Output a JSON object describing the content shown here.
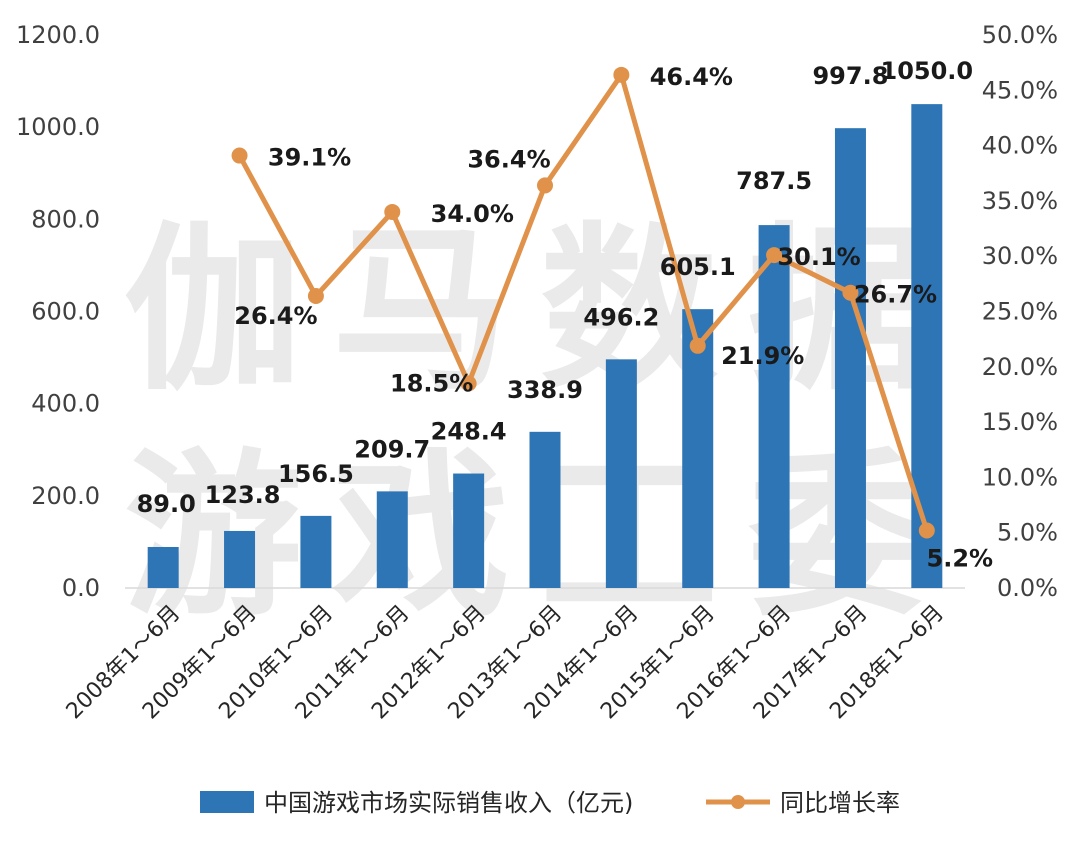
{
  "chart_data": {
    "type": "bar",
    "categories": [
      "2008年1～6月",
      "2009年1～6月",
      "2010年1～6月",
      "2011年1～6月",
      "2012年1～6月",
      "2013年1～6月",
      "2014年1～6月",
      "2015年1～6月",
      "2016年1～6月",
      "2017年1～6月",
      "2018年1～6月"
    ],
    "series": [
      {
        "name": "中国游戏市场实际销售收入（亿元)",
        "type": "bar",
        "axis": "left",
        "values": [
          89.0,
          123.8,
          156.5,
          209.7,
          248.4,
          338.9,
          496.2,
          605.1,
          787.5,
          997.8,
          1050.0
        ],
        "labels": [
          "89.0",
          "123.8",
          "156.5",
          "209.7",
          "248.4",
          "338.9",
          "496.2",
          "605.1",
          "787.5",
          "997.8",
          "1050.0"
        ]
      },
      {
        "name": "同比增长率",
        "type": "line",
        "axis": "right",
        "values": [
          null,
          39.1,
          26.4,
          34.0,
          18.5,
          36.4,
          46.4,
          21.9,
          30.1,
          26.7,
          5.2
        ],
        "labels": [
          null,
          "39.1%",
          "26.4%",
          "34.0%",
          "18.5%",
          "36.4%",
          "46.4%",
          "21.9%",
          "30.1%",
          "26.7%",
          "5.2%"
        ]
      }
    ],
    "left_axis": {
      "ylim": [
        0,
        1200
      ],
      "ticks": [
        "0.0",
        "200.0",
        "400.0",
        "600.0",
        "800.0",
        "1000.0",
        "1200.0"
      ]
    },
    "right_axis": {
      "ylim": [
        0,
        50
      ],
      "ticks": [
        "0.0%",
        "5.0%",
        "10.0%",
        "15.0%",
        "20.0%",
        "25.0%",
        "30.0%",
        "35.0%",
        "40.0%",
        "45.0%",
        "50.0%"
      ]
    },
    "watermark": [
      "伽马数据",
      "游戏工委"
    ],
    "legend_position": "bottom",
    "colors": {
      "bar": "#2e75b6",
      "line": "#e0924a"
    }
  }
}
